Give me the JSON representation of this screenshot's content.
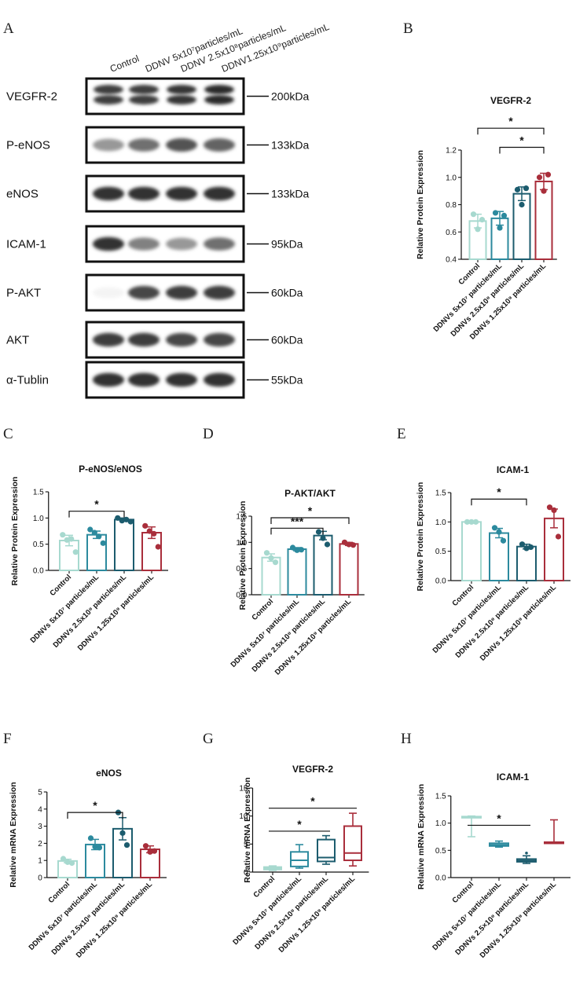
{
  "panel_letters": [
    "A",
    "B",
    "C",
    "D",
    "E",
    "F",
    "G",
    "H"
  ],
  "colors": {
    "control": "#a7d9cf",
    "low": "#2c8a9e",
    "mid": "#1c5c6e",
    "high": "#a92e3b"
  },
  "blot": {
    "columns": [
      "Control",
      "DDNV 5x10⁷particles/mL",
      "DDNV 2.5x10⁸particles/mL",
      "DDNV1.25x10⁹particles/mL"
    ],
    "rows": [
      {
        "label": "VEGFR-2",
        "size": "200kDa",
        "intensity": [
          0.85,
          0.85,
          0.88,
          0.92
        ]
      },
      {
        "label": "P-eNOS",
        "size": "133kDa",
        "intensity": [
          0.45,
          0.62,
          0.75,
          0.68
        ]
      },
      {
        "label": "eNOS",
        "size": "133kDa",
        "intensity": [
          0.9,
          0.9,
          0.9,
          0.9
        ]
      },
      {
        "label": "ICAM-1",
        "size": "95kDa",
        "intensity": [
          0.9,
          0.55,
          0.45,
          0.62
        ]
      },
      {
        "label": "P-AKT",
        "size": "60kDa",
        "intensity": [
          0.05,
          0.8,
          0.85,
          0.85
        ]
      },
      {
        "label": "AKT",
        "size": "60kDa",
        "intensity": [
          0.85,
          0.85,
          0.8,
          0.8
        ]
      },
      {
        "label": "α-Tublin",
        "size": "55kDa",
        "intensity": [
          0.9,
          0.9,
          0.9,
          0.9
        ]
      }
    ]
  },
  "chart_data": [
    {
      "panel": "B",
      "type": "bar",
      "title": "VEGFR-2",
      "ylabel": "Relative Protein Expression",
      "ylim": [
        0.4,
        1.2
      ],
      "yticks": [
        "0.4",
        "0.6",
        "0.8",
        "1.0",
        "1.2"
      ],
      "categories": [
        "Control",
        "DDNVs 5x10⁷ particles/mL",
        "DDNVs 2.5x10⁸ particles/mL",
        "DDNVs 1.25x10⁹ particles/mL"
      ],
      "values": [
        0.68,
        0.7,
        0.88,
        0.97
      ],
      "sem": [
        0.05,
        0.05,
        0.05,
        0.06
      ],
      "points": [
        [
          0.73,
          0.62,
          0.69
        ],
        [
          0.74,
          0.63,
          0.72
        ],
        [
          0.91,
          0.8,
          0.92
        ],
        [
          1.0,
          0.9,
          1.02
        ]
      ],
      "sig": [
        {
          "from": 0,
          "to": 3,
          "label": "*",
          "y": 1.36
        },
        {
          "from": 1,
          "to": 3,
          "label": "*",
          "y": 1.22
        }
      ]
    },
    {
      "panel": "C",
      "type": "bar",
      "title": "P-eNOS/eNOS",
      "ylabel": "Relative Protein Expression",
      "ylim": [
        0,
        1.5
      ],
      "yticks": [
        "0.0",
        "0.5",
        "1.0",
        "1.5"
      ],
      "categories": [
        "Control",
        "DDNVs 5x10⁷ particles/mL",
        "DDNVs 2.5x10⁸ particles/mL",
        "DDNVs 1.25x10⁹ particles/mL"
      ],
      "values": [
        0.57,
        0.68,
        0.97,
        0.72
      ],
      "sem": [
        0.1,
        0.07,
        0.03,
        0.11
      ],
      "points": [
        [
          0.68,
          0.58,
          0.6,
          0.35
        ],
        [
          0.78,
          0.72,
          0.65,
          0.52
        ],
        [
          1.0,
          0.95,
          0.97,
          0.93
        ],
        [
          0.85,
          0.75,
          0.7,
          0.45
        ]
      ],
      "sig": [
        {
          "from": 0,
          "to": 2,
          "label": "*",
          "y": 1.13
        }
      ]
    },
    {
      "panel": "D",
      "type": "bar",
      "title": "P-AKT/AKT",
      "ylabel": "Relative Protein Expression",
      "ylim": [
        0,
        1.5
      ],
      "yticks": [
        "0.0",
        "0.5",
        "1.0",
        "1.5"
      ],
      "categories": [
        "Control",
        "DDNVs 5x10⁷ particles/mL",
        "DDNVs 2.5x10⁸ particles/mL",
        "DDNVs 1.25x10⁹ particles/mL"
      ],
      "values": [
        0.71,
        0.87,
        1.13,
        0.97
      ],
      "sem": [
        0.07,
        0.03,
        0.08,
        0.03
      ],
      "points": [
        [
          0.8,
          0.7,
          0.62
        ],
        [
          0.9,
          0.85,
          0.86
        ],
        [
          1.2,
          1.08,
          0.96
        ],
        [
          1.0,
          0.96,
          0.95
        ]
      ],
      "sig": [
        {
          "from": 0,
          "to": 2,
          "label": "***",
          "y": 1.27
        },
        {
          "from": 0,
          "to": 3,
          "label": "*",
          "y": 1.47
        }
      ]
    },
    {
      "panel": "E",
      "type": "bar",
      "title": "ICAM-1",
      "ylabel": "Relative Protein Expression",
      "ylim": [
        0,
        1.5
      ],
      "yticks": [
        "0.0",
        "0.5",
        "1.0",
        "1.5"
      ],
      "categories": [
        "Control",
        "DDNVs 5x10⁷ particles/mL",
        "DDNVs 2.5x10⁸ particles/mL",
        "DDNVs 1.25x10⁹ particles/mL"
      ],
      "values": [
        1.0,
        0.81,
        0.58,
        1.06
      ],
      "sem": [
        0.01,
        0.08,
        0.04,
        0.16
      ],
      "points": [
        [
          1.0,
          1.0,
          1.0
        ],
        [
          0.9,
          0.83,
          0.68
        ],
        [
          0.62,
          0.55,
          0.57
        ],
        [
          1.25,
          1.2,
          0.75
        ]
      ],
      "sig": [
        {
          "from": 0,
          "to": 2,
          "label": "*",
          "y": 1.39
        }
      ]
    },
    {
      "panel": "F",
      "type": "bar",
      "title": "eNOS",
      "ylabel": "Relative mRNA Expression",
      "ylim": [
        0,
        5
      ],
      "yticks": [
        "0",
        "1",
        "2",
        "3",
        "4",
        "5"
      ],
      "categories": [
        "Control",
        "DDNVs 5x10⁷ particles/mL",
        "DDNVs 2.5x10⁸ particles/mL",
        "DDNVs 1.25x10⁹ particles/mL"
      ],
      "values": [
        0.97,
        1.93,
        2.85,
        1.65
      ],
      "sem": [
        0.1,
        0.3,
        0.65,
        0.2
      ],
      "points": [
        [
          1.1,
          0.9,
          0.85
        ],
        [
          2.3,
          1.8,
          1.75
        ],
        [
          3.8,
          2.6,
          1.9
        ],
        [
          1.85,
          1.5,
          1.55
        ]
      ],
      "sig": [
        {
          "from": 0,
          "to": 2,
          "label": "*",
          "y": 3.8
        }
      ]
    },
    {
      "panel": "G",
      "type": "box",
      "title": "VEGFR-2",
      "ylabel": "Relative mRNA Expression",
      "ylim": [
        0,
        15
      ],
      "yticks": [
        "0",
        "5",
        "10",
        "15"
      ],
      "categories": [
        "Control",
        "DDNVs 5×10⁷ particles/mL",
        "DDNVs 2.5×10⁸ particles/mL",
        "DDNVs 1.25×10⁹ particles/mL"
      ],
      "boxes": [
        {
          "min": 0.3,
          "q1": 0.45,
          "median": 0.7,
          "q3": 0.9,
          "max": 1.1
        },
        {
          "min": 0.7,
          "q1": 1.0,
          "median": 2.1,
          "q3": 3.6,
          "max": 4.9
        },
        {
          "min": 1.4,
          "q1": 1.9,
          "median": 2.6,
          "q3": 5.8,
          "max": 6.5
        },
        {
          "min": 1.1,
          "q1": 2.1,
          "median": 3.4,
          "q3": 8.2,
          "max": 10.5
        }
      ],
      "sig": [
        {
          "from": 0,
          "to": 2,
          "label": "*",
          "y": 7.3
        },
        {
          "from": 0,
          "to": 3,
          "label": "*",
          "y": 11.4
        }
      ]
    },
    {
      "panel": "H",
      "type": "box",
      "title": "ICAM-1",
      "ylabel": "Relative mRNA Expression",
      "ylim": [
        0,
        1.5
      ],
      "yticks": [
        "0.0",
        "0.5",
        "1.0",
        "1.5"
      ],
      "categories": [
        "Control",
        "DDNVs 5×10⁷ particles/mL",
        "DDNVs 2.5×10⁸ particles/mL",
        "DDNVs 1.25×10⁹ particles/mL"
      ],
      "boxes": [
        {
          "min": 0.75,
          "q1": 1.1,
          "median": 1.11,
          "q3": 1.12,
          "max": 1.13
        },
        {
          "min": 0.56,
          "q1": 0.58,
          "median": 0.6,
          "q3": 0.63,
          "max": 0.67
        },
        {
          "min": 0.26,
          "q1": 0.29,
          "median": 0.31,
          "q3": 0.34,
          "max": 0.4
        },
        {
          "min": 0.63,
          "q1": 0.63,
          "median": 0.64,
          "q3": 0.65,
          "max": 1.06
        }
      ],
      "outliers": [
        [
          2,
          0.45
        ]
      ],
      "sig": [
        {
          "from": 0,
          "to": 2,
          "label": "*",
          "y": 0.96
        }
      ]
    }
  ]
}
